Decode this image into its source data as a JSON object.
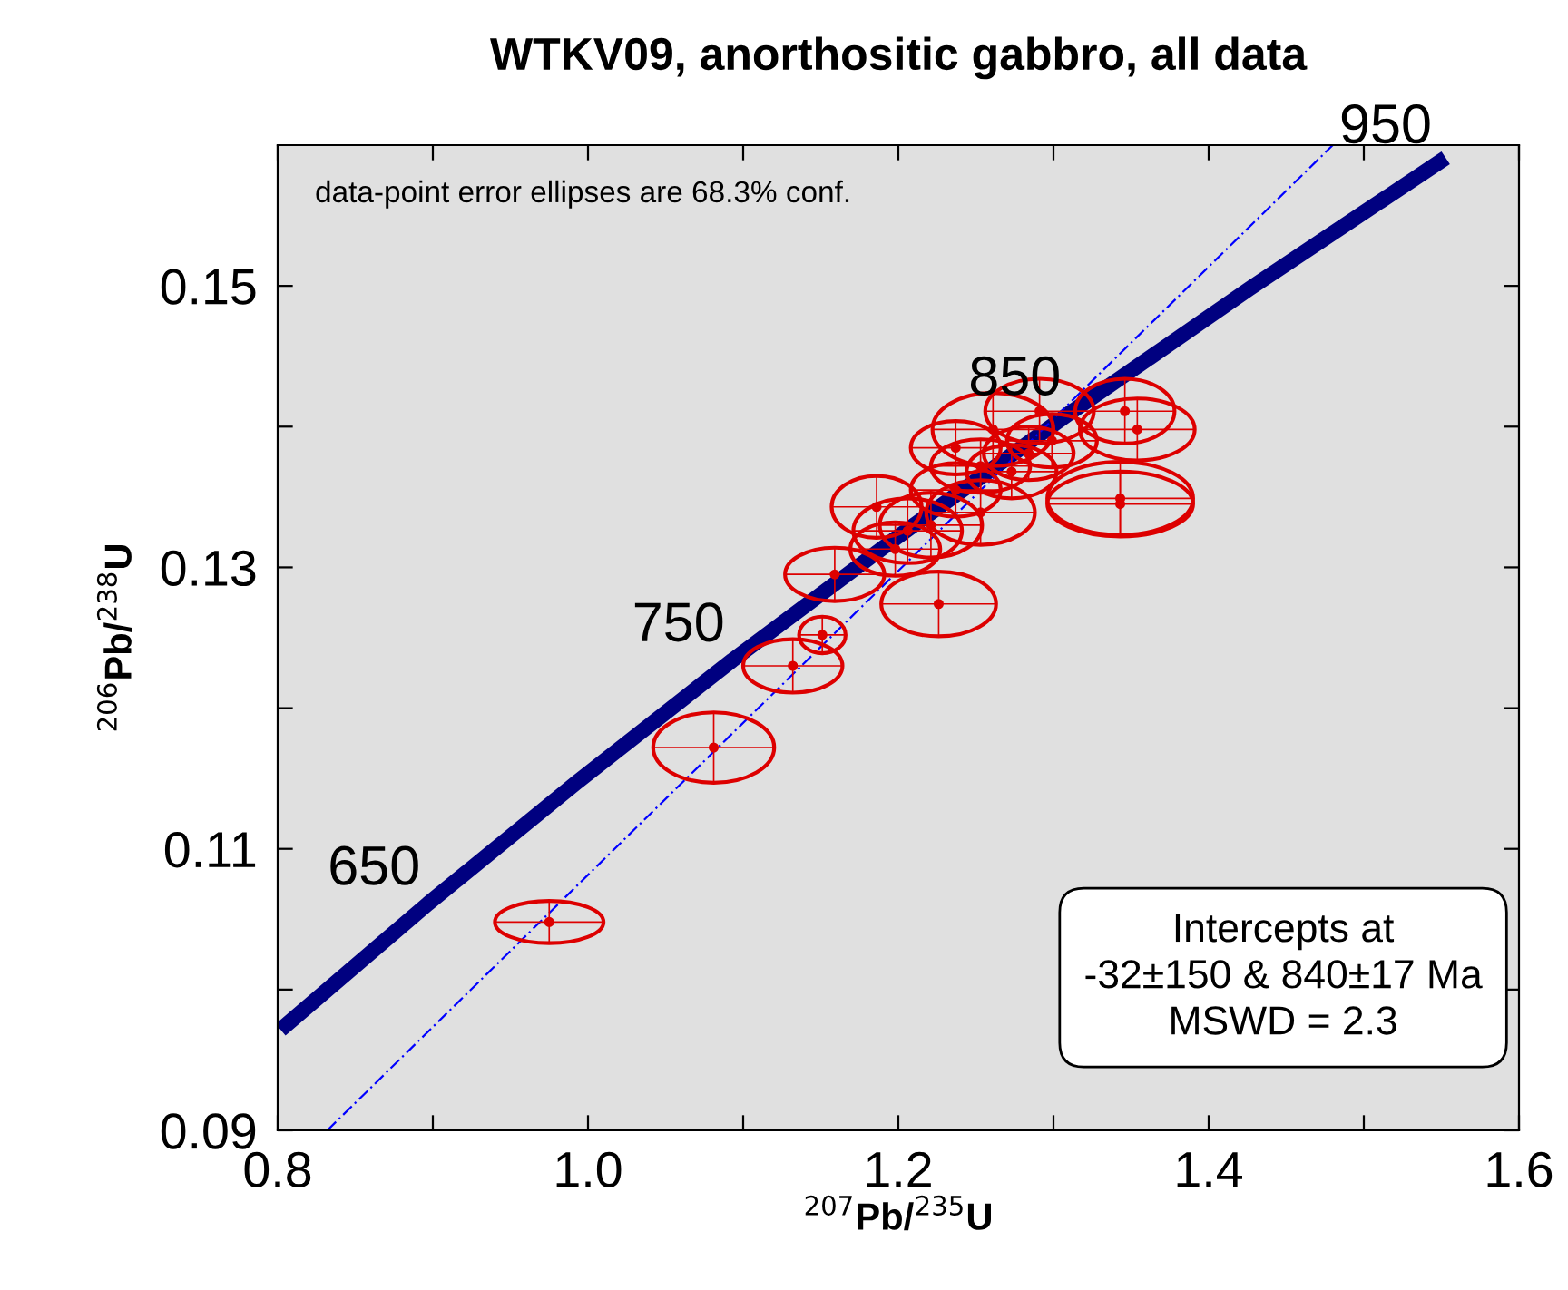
{
  "chart_data": {
    "type": "scatter",
    "title": "WTKV09, anorthositic gabbro, all data",
    "xlabel": "$^{207}$Pb/$^{235}$U",
    "ylabel": "$^{206}$Pb/$^{238}$U",
    "xlim": [
      0.8,
      1.6
    ],
    "ylim": [
      0.09,
      0.16
    ],
    "xticks": [
      0.8,
      {
        "value": 0.9,
        "label": null
      },
      {
        "value": 1.0,
        "label": "1.0"
      },
      {
        "value": 1.1,
        "label": null
      },
      1.2,
      {
        "value": 1.3,
        "label": null
      },
      1.4,
      {
        "value": 1.5,
        "label": null
      },
      1.6
    ],
    "yticks": [
      0.09,
      {
        "value": 0.1,
        "label": null
      },
      0.11,
      {
        "value": 0.12,
        "label": null
      },
      0.13,
      {
        "value": 0.14,
        "label": null
      },
      0.15
    ],
    "grid": false,
    "legend": false,
    "series": [
      {
        "type": "line",
        "color": "#000080",
        "x": [
          0.8056,
          0.8968,
          0.9925,
          1.093,
          1.1987,
          1.3097,
          1.4263,
          1.5487
        ],
        "values": [
          0.0975,
          0.1061,
          0.1147,
          0.1234,
          0.1321,
          0.1409,
          0.1498,
          0.1588
        ],
        "line_style": "solid"
      },
      {
        "type": "line",
        "color": "#0000ff",
        "x": [
          0.832,
          1.48
        ],
        "values": [
          0.09,
          0.16
        ],
        "line_style": "dashed"
      },
      {
        "color": "#dd0000",
        "marker": "circle",
        "x": [
          0.975,
          1.081,
          1.132,
          1.151,
          1.226,
          1.159,
          1.198,
          1.186,
          1.221,
          1.237,
          1.253,
          1.261,
          1.284,
          1.299,
          1.291,
          1.346,
          1.354,
          1.343,
          1.343,
          1.253,
          1.206,
          1.237,
          1.273
        ],
        "values": [
          0.1048,
          0.1172,
          0.123,
          0.1252,
          0.1274,
          0.1295,
          0.1313,
          0.1343,
          0.133,
          0.1355,
          0.1372,
          0.1398,
          0.1381,
          0.139,
          0.1411,
          0.1411,
          0.1398,
          0.1349,
          0.1345,
          0.1339,
          0.1326,
          0.1385,
          0.1368
        ],
        "xerrors": [
          0.035,
          0.039,
          0.032,
          0.015,
          0.037,
          0.032,
          0.029,
          0.029,
          0.033,
          0.029,
          0.032,
          0.039,
          0.029,
          0.029,
          0.035,
          0.032,
          0.037,
          0.047,
          0.047,
          0.035,
          0.035,
          0.029,
          0.029
        ],
        "errors": [
          0.0015,
          0.0025,
          0.0019,
          0.0013,
          0.0023,
          0.0019,
          0.0019,
          0.0022,
          0.0023,
          0.0019,
          0.0019,
          0.0026,
          0.0019,
          0.0019,
          0.0023,
          0.0023,
          0.0022,
          0.0026,
          0.0023,
          0.0023,
          0.0023,
          0.0019,
          0.0019
        ]
      }
    ],
    "annotations": [
      {
        "text": "650",
        "x": 0.8968,
        "y": 0.1061
      },
      {
        "text": "750",
        "x": 1.093,
        "y": 0.1234
      },
      {
        "text": "850",
        "x": 1.3097,
        "y": 0.1409
      },
      {
        "text": "950",
        "x": 1.5487,
        "y": 0.1588
      },
      "data-point error ellipses are 68.3% conf.",
      "Intercepts at\n-32±150 & 840±17 Ma\nMSWD = 2.3"
    ]
  }
}
